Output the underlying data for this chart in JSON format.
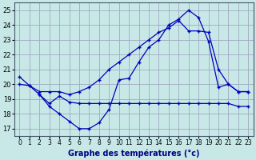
{
  "title": "Graphe des températures (°c)",
  "bg": "#c8e8e8",
  "grid_color": "#a0a8c0",
  "lc": "#0000bb",
  "xlim": [
    -0.5,
    23.5
  ],
  "ylim": [
    16.5,
    25.5
  ],
  "yticks": [
    17,
    18,
    19,
    20,
    21,
    22,
    23,
    24,
    25
  ],
  "xticks": [
    0,
    1,
    2,
    3,
    4,
    5,
    6,
    7,
    8,
    9,
    10,
    11,
    12,
    13,
    14,
    15,
    16,
    17,
    18,
    19,
    20,
    21,
    22,
    23
  ],
  "line1_x": [
    0,
    1,
    2,
    3,
    4,
    5,
    6,
    7,
    8,
    9,
    10,
    11,
    12,
    13,
    14,
    15,
    16,
    17,
    18,
    19,
    20,
    21,
    22,
    23
  ],
  "line1_y": [
    20.5,
    19.9,
    19.3,
    18.5,
    18.0,
    17.5,
    17.0,
    17.0,
    17.4,
    18.3,
    20.3,
    20.4,
    21.5,
    22.5,
    23.0,
    24.0,
    24.4,
    25.0,
    24.5,
    22.9,
    19.8,
    20.0,
    19.5,
    19.5
  ],
  "line2_x": [
    0,
    1,
    2,
    3,
    4,
    5,
    6,
    7,
    8,
    9,
    10,
    11,
    12,
    13,
    14,
    15,
    16,
    17,
    18,
    19,
    20,
    21,
    22,
    23
  ],
  "line2_y": [
    20.0,
    19.9,
    19.5,
    19.5,
    19.5,
    19.3,
    19.5,
    19.8,
    20.3,
    21.0,
    21.5,
    22.0,
    22.5,
    23.0,
    23.5,
    23.8,
    24.3,
    23.6,
    23.6,
    23.5,
    21.0,
    20.0,
    19.5,
    19.5
  ],
  "line3_x": [
    2,
    3,
    4,
    5,
    6,
    7,
    8,
    9,
    10,
    11,
    12,
    13,
    14,
    15,
    16,
    17,
    18,
    19,
    20,
    21,
    22,
    23
  ],
  "line3_y": [
    19.3,
    18.7,
    19.2,
    18.8,
    18.7,
    18.7,
    18.7,
    18.7,
    18.7,
    18.7,
    18.7,
    18.7,
    18.7,
    18.7,
    18.7,
    18.7,
    18.7,
    18.7,
    18.7,
    18.7,
    18.5,
    18.5
  ]
}
